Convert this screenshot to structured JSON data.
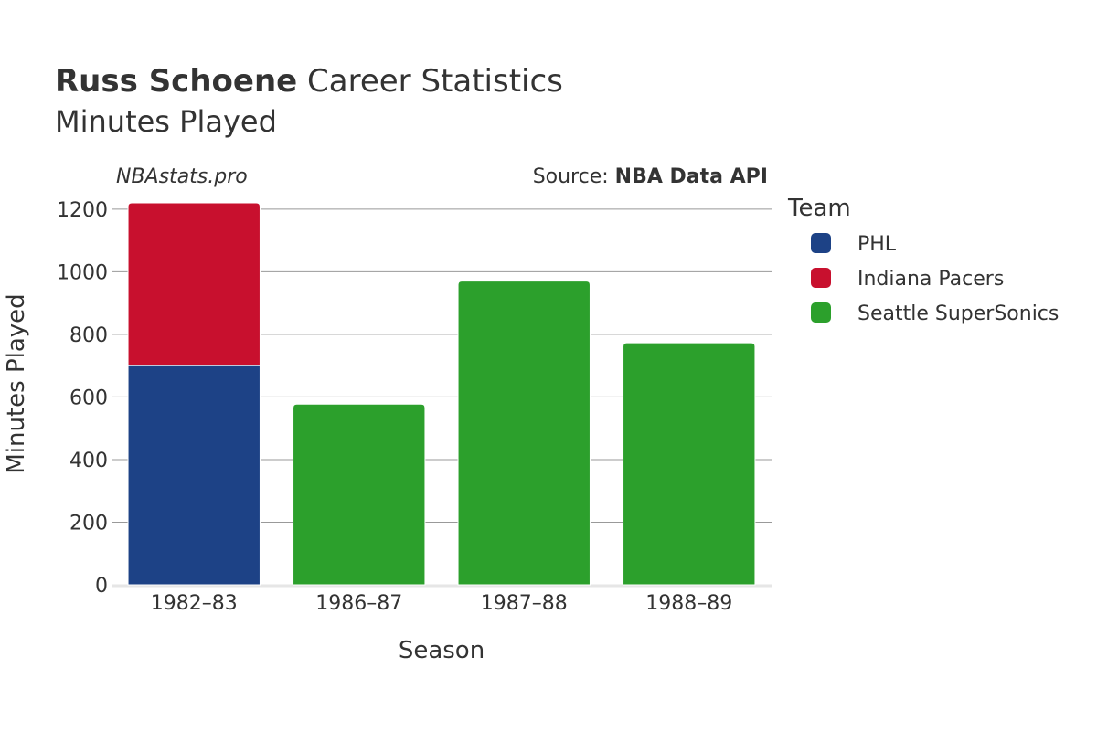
{
  "header": {
    "title_name": "Russ Schoene",
    "title_rest": " Career Statistics",
    "subtitle": "Minutes Played"
  },
  "watermark": "NBAstats.pro",
  "source": {
    "prefix": "Source: ",
    "name": "NBA Data API"
  },
  "legend": {
    "title": "Team"
  },
  "chart_data": {
    "type": "bar",
    "stacked": true,
    "categories": [
      "1982–83",
      "1986–87",
      "1987–88",
      "1988–89"
    ],
    "series": [
      {
        "name": "PHL",
        "color": "#1d4286",
        "values": [
          700,
          0,
          0,
          0
        ]
      },
      {
        "name": "Indiana Pacers",
        "color": "#c8102e",
        "values": [
          520,
          0,
          0,
          0
        ]
      },
      {
        "name": "Seattle SuperSonics",
        "color": "#2ca02c",
        "values": [
          0,
          577,
          970,
          773
        ]
      }
    ],
    "xlabel": "Season",
    "ylabel": "Minutes Played",
    "ylim": [
      0,
      1220
    ],
    "yticks": [
      0,
      200,
      400,
      600,
      800,
      1000,
      1200
    ],
    "grid": true,
    "legend_position": "right"
  }
}
